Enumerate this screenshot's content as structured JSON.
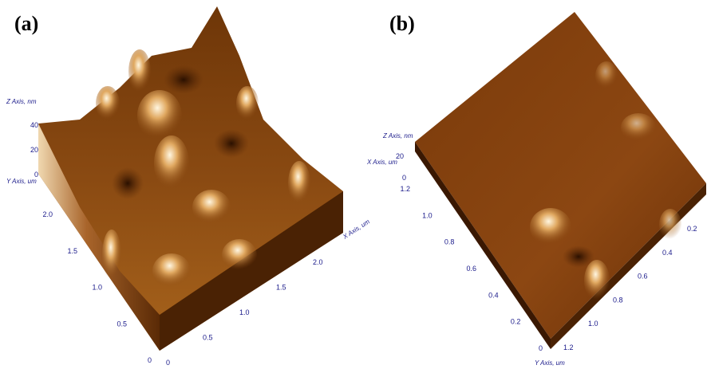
{
  "panels": [
    {
      "label": "(a)",
      "z_axis_label": "Z Axis, nm",
      "z_ticks": [
        "40",
        "20",
        "0"
      ],
      "y_axis_label": "Y Axis, um",
      "y_ticks": [
        "2.0",
        "1.5",
        "1.0",
        "0.5",
        "0"
      ],
      "x_axis_label": "X Axis, um",
      "x_ticks": [
        "0",
        "0.5",
        "1.0",
        "1.5",
        "2.0"
      ]
    },
    {
      "label": "(b)",
      "z_axis_label": "Z Axis, nm",
      "z_ticks": [
        "20",
        "0"
      ],
      "y_axis_label": "Y Axis, um",
      "y_ticks": [
        "1.2",
        "1.0",
        "0.8",
        "0.6",
        "0.4",
        "0.2",
        "0"
      ],
      "x_axis_label": "X Axis, um",
      "x_ticks": [
        "1.2",
        "1.0",
        "0.8",
        "0.6",
        "0.4",
        "0.2"
      ]
    }
  ]
}
